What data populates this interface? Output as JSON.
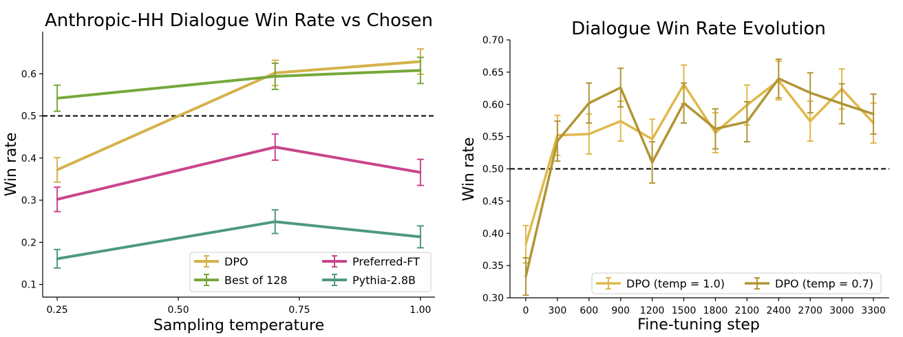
{
  "chart_data": [
    {
      "type": "line",
      "title": "Anthropic-HH Dialogue Win Rate vs Chosen",
      "xlabel": "Sampling temperature",
      "ylabel": "Win rate",
      "xlim": [
        0.22,
        1.03
      ],
      "ylim": [
        0.07,
        0.7
      ],
      "xticks": [
        0.25,
        0.5,
        0.75,
        1.0
      ],
      "xtick_labels": [
        "0.25",
        "0.50",
        "0.75",
        "1.00"
      ],
      "yticks": [
        0.1,
        0.2,
        0.3,
        0.4,
        0.5,
        0.6
      ],
      "ytick_labels": [
        "0.1",
        "0.2",
        "0.3",
        "0.4",
        "0.5",
        "0.6"
      ],
      "reference_line": 0.5,
      "grid": false,
      "legend_position": "lower-right",
      "legend_columns": 2,
      "series": [
        {
          "name": "DPO",
          "color": "#d4b24c",
          "x": [
            0.25,
            0.7,
            1.0
          ],
          "values": [
            0.372,
            0.602,
            0.629
          ],
          "errors": [
            0.029,
            0.03,
            0.03
          ]
        },
        {
          "name": "Best of 128",
          "color": "#76a83b",
          "x": [
            0.25,
            0.7,
            1.0
          ],
          "values": [
            0.542,
            0.594,
            0.608
          ],
          "errors": [
            0.031,
            0.031,
            0.031
          ]
        },
        {
          "name": "Preferred-FT",
          "color": "#c9458c",
          "x": [
            0.25,
            0.7,
            1.0
          ],
          "values": [
            0.302,
            0.426,
            0.366
          ],
          "errors": [
            0.029,
            0.031,
            0.031
          ]
        },
        {
          "name": "Pythia-2.8B",
          "color": "#4e9a7c",
          "x": [
            0.25,
            0.7,
            1.0
          ],
          "values": [
            0.161,
            0.249,
            0.213
          ],
          "errors": [
            0.022,
            0.028,
            0.026
          ]
        }
      ]
    },
    {
      "type": "line",
      "title": "Dialogue Win Rate Evolution",
      "xlabel": "Fine-tuning step",
      "ylabel": "Win rate",
      "xlim": [
        -150,
        3450
      ],
      "ylim": [
        0.3,
        0.7
      ],
      "xticks": [
        0,
        300,
        600,
        900,
        1200,
        1500,
        1800,
        2100,
        2400,
        2700,
        3000,
        3300
      ],
      "xtick_labels": [
        "0",
        "300",
        "600",
        "900",
        "1200",
        "1500",
        "1800",
        "2100",
        "2400",
        "2700",
        "3000",
        "3300"
      ],
      "yticks": [
        0.3,
        0.35,
        0.4,
        0.45,
        0.5,
        0.55,
        0.6,
        0.65,
        0.7
      ],
      "ytick_labels": [
        "0.30",
        "0.35",
        "0.40",
        "0.45",
        "0.50",
        "0.55",
        "0.60",
        "0.65",
        "0.70"
      ],
      "reference_line": 0.5,
      "grid": false,
      "legend_position": "bottom-center",
      "legend_columns": 2,
      "series": [
        {
          "name": "DPO (temp = 1.0)",
          "color": "#e0b84a",
          "x": [
            0,
            300,
            600,
            900,
            1200,
            1500,
            1800,
            2100,
            2400,
            2700,
            3000,
            3300
          ],
          "values": [
            0.383,
            0.552,
            0.554,
            0.574,
            0.546,
            0.631,
            0.556,
            0.599,
            0.637,
            0.574,
            0.624,
            0.571
          ],
          "errors": [
            0.029,
            0.031,
            0.031,
            0.031,
            0.031,
            0.03,
            0.031,
            0.031,
            0.03,
            0.031,
            0.031,
            0.031
          ]
        },
        {
          "name": "DPO (temp = 0.7)",
          "color": "#b19533",
          "x": [
            0,
            300,
            600,
            900,
            1200,
            1500,
            1800,
            2100,
            2400,
            2700,
            3000,
            3300
          ],
          "values": [
            0.333,
            0.543,
            0.602,
            0.626,
            0.51,
            0.602,
            0.562,
            0.573,
            0.64,
            0.618,
            0.601,
            0.585
          ],
          "errors": [
            0.029,
            0.031,
            0.031,
            0.03,
            0.032,
            0.031,
            0.031,
            0.031,
            0.03,
            0.031,
            0.031,
            0.031
          ]
        }
      ]
    }
  ]
}
